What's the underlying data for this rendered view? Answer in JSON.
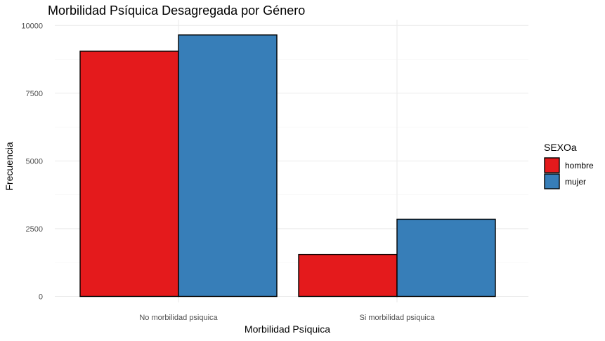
{
  "chart_data": {
    "type": "bar",
    "title": "Morbilidad Psíquica Desagregada por Género",
    "xlabel": "Morbilidad Psíquica",
    "ylabel": "Frecuencia",
    "categories": [
      "No morbilidad psiquica",
      "Si morbilidad psiquica"
    ],
    "series": [
      {
        "name": "hombre",
        "color": "#e41a1c",
        "values": [
          9050,
          1550
        ]
      },
      {
        "name": "mujer",
        "color": "#377eb8",
        "values": [
          9650,
          2850
        ]
      }
    ],
    "ylim": [
      0,
      10000
    ],
    "yticks": [
      0,
      2500,
      5000,
      7500,
      10000
    ],
    "ytick_labels": [
      "0",
      "2500",
      "5000",
      "7500",
      "10000"
    ],
    "grid": true,
    "legend": {
      "title": "SEXOa",
      "position": "right"
    }
  }
}
